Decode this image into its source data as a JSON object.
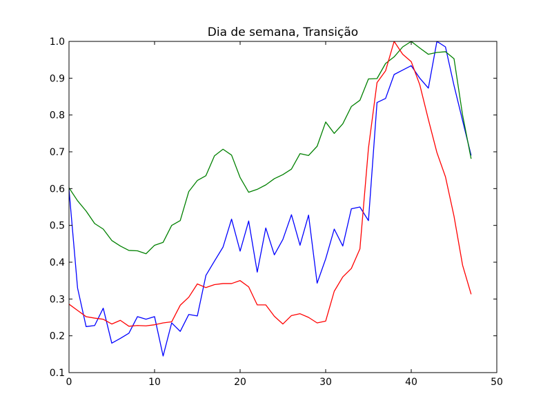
{
  "chart_data": {
    "type": "line",
    "title": "Dia de semana, Transição",
    "xlabel": "",
    "ylabel": "",
    "xlim": [
      0,
      50
    ],
    "ylim": [
      0.1,
      1.0
    ],
    "xticks": [
      "0",
      "10",
      "20",
      "30",
      "40",
      "50"
    ],
    "yticks": [
      "0.1",
      "0.2",
      "0.3",
      "0.4",
      "0.5",
      "0.6",
      "0.7",
      "0.8",
      "0.9",
      "1.0"
    ],
    "grid": false,
    "x": [
      0,
      1,
      2,
      3,
      4,
      5,
      6,
      7,
      8,
      9,
      10,
      11,
      12,
      13,
      14,
      15,
      16,
      17,
      18,
      19,
      20,
      21,
      22,
      23,
      24,
      25,
      26,
      27,
      28,
      29,
      30,
      31,
      32,
      33,
      34,
      35,
      36,
      37,
      38,
      39,
      40,
      41,
      42,
      43,
      44,
      45,
      46,
      47
    ],
    "series": [
      {
        "color": "#0000ff",
        "values": [
          0.598,
          0.33,
          0.225,
          0.228,
          0.275,
          0.18,
          0.193,
          0.207,
          0.252,
          0.245,
          0.252,
          0.145,
          0.235,
          0.212,
          0.258,
          0.254,
          0.364,
          0.403,
          0.441,
          0.517,
          0.43,
          0.512,
          0.373,
          0.493,
          0.42,
          0.462,
          0.529,
          0.446,
          0.528,
          0.343,
          0.409,
          0.49,
          0.444,
          0.545,
          0.55,
          0.513,
          0.834,
          0.845,
          0.91,
          0.922,
          0.934,
          0.9,
          0.873,
          1.0,
          0.985,
          0.88,
          0.785,
          0.69
        ]
      },
      {
        "color": "#008000",
        "values": [
          0.602,
          0.567,
          0.539,
          0.505,
          0.49,
          0.459,
          0.444,
          0.432,
          0.431,
          0.423,
          0.446,
          0.454,
          0.5,
          0.513,
          0.592,
          0.622,
          0.635,
          0.689,
          0.707,
          0.691,
          0.63,
          0.59,
          0.598,
          0.61,
          0.627,
          0.638,
          0.653,
          0.695,
          0.69,
          0.715,
          0.781,
          0.75,
          0.776,
          0.823,
          0.84,
          0.898,
          0.899,
          0.94,
          0.958,
          0.985,
          1.0,
          0.982,
          0.965,
          0.97,
          0.972,
          0.953,
          0.8,
          0.681
        ]
      },
      {
        "color": "#ff0000",
        "values": [
          0.286,
          0.269,
          0.252,
          0.248,
          0.245,
          0.232,
          0.242,
          0.226,
          0.228,
          0.227,
          0.23,
          0.235,
          0.238,
          0.283,
          0.305,
          0.341,
          0.331,
          0.339,
          0.342,
          0.342,
          0.35,
          0.333,
          0.284,
          0.284,
          0.253,
          0.232,
          0.255,
          0.26,
          0.25,
          0.235,
          0.24,
          0.321,
          0.36,
          0.383,
          0.436,
          0.71,
          0.888,
          0.92,
          1.0,
          0.965,
          0.945,
          0.882,
          0.788,
          0.698,
          0.632,
          0.525,
          0.392,
          0.313
        ]
      }
    ]
  }
}
